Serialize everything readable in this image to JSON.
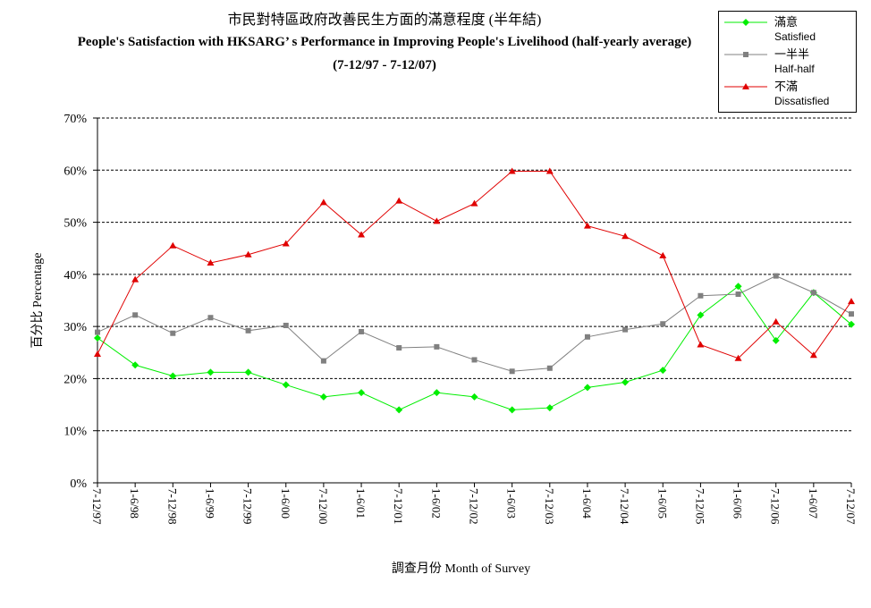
{
  "chart_data": {
    "type": "line",
    "title_zh": "市民對特區政府改善民生方面的滿意程度 (半年結)",
    "title_en": "People's Satisfaction with HKSARG’  s Performance in Improving People's Livelihood (half-yearly average)",
    "subtitle": "(7-12/97 - 7-12/07)",
    "xlabel": "調查月份 Month of Survey",
    "ylabel": "百分比 Percentage",
    "ylim": [
      0,
      70
    ],
    "yticks": [
      "0%",
      "10%",
      "20%",
      "30%",
      "40%",
      "50%",
      "60%",
      "70%"
    ],
    "grid": "horizontal dashed",
    "legend_position": "top-right",
    "categories": [
      "7-12/97",
      "1-6/98",
      "7-12/98",
      "1-6/99",
      "7-12/99",
      "1-6/00",
      "7-12/00",
      "1-6/01",
      "7-12/01",
      "1-6/02",
      "7-12/02",
      "1-6/03",
      "7-12/03",
      "1-6/04",
      "7-12/04",
      "1-6/05",
      "7-12/05",
      "1-6/06",
      "7-12/06",
      "1-6/07",
      "7-12/07"
    ],
    "series": [
      {
        "name_zh": "滿意",
        "name_en": "Satisfied",
        "color": "#00ee00",
        "marker": "diamond",
        "values": [
          27.8,
          22.6,
          20.5,
          21.2,
          21.2,
          18.8,
          16.5,
          17.3,
          14.0,
          17.3,
          16.5,
          14.0,
          14.4,
          18.3,
          19.3,
          21.6,
          32.2,
          37.7,
          27.3,
          36.5,
          30.4
        ]
      },
      {
        "name_zh": "一半半",
        "name_en": "Half-half",
        "color": "#808080",
        "marker": "square",
        "values": [
          28.9,
          32.2,
          28.7,
          31.7,
          29.2,
          30.2,
          23.4,
          29.0,
          25.9,
          26.1,
          23.6,
          21.4,
          22.0,
          28.0,
          29.4,
          30.5,
          35.9,
          36.2,
          39.7,
          36.5,
          32.4
        ]
      },
      {
        "name_zh": "不滿",
        "name_en": "Dissatisfied",
        "color": "#e00000",
        "marker": "triangle",
        "values": [
          24.7,
          39.0,
          45.5,
          42.2,
          43.8,
          45.9,
          53.8,
          47.6,
          54.1,
          50.2,
          53.6,
          59.8,
          59.8,
          49.3,
          47.3,
          43.6,
          26.5,
          23.9,
          30.9,
          24.5,
          34.8
        ]
      }
    ]
  }
}
